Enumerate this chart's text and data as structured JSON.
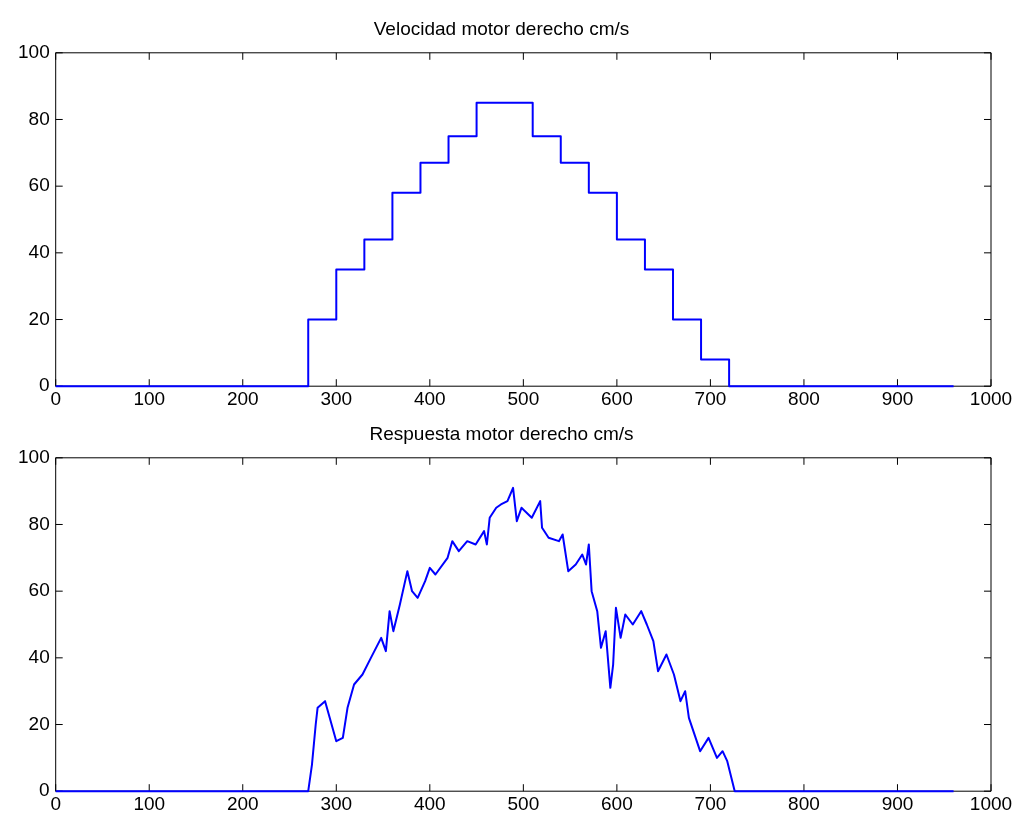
{
  "chart_data": [
    {
      "type": "step",
      "title": "Velocidad motor derecho cm/s",
      "xlim": [
        0,
        1000
      ],
      "xticks": [
        0,
        100,
        200,
        300,
        400,
        500,
        600,
        700,
        800,
        900,
        1000
      ],
      "ylim": [
        0,
        100
      ],
      "yticks": [
        0,
        20,
        40,
        60,
        80,
        100
      ],
      "grid": false,
      "legend": false,
      "line_style": "solid",
      "marker": "none",
      "series": [
        {
          "color": "#0000ff",
          "x": [
            0,
            270,
            300,
            330,
            360,
            390,
            420,
            450,
            510,
            540,
            570,
            600,
            630,
            660,
            690,
            720,
            960
          ],
          "values": [
            0,
            20,
            35,
            44,
            58,
            67,
            75,
            85,
            75,
            67,
            58,
            44,
            35,
            20,
            8,
            0,
            0
          ]
        }
      ]
    },
    {
      "type": "line",
      "title": "Respuesta motor derecho cm/s",
      "xlim": [
        0,
        1000
      ],
      "xticks": [
        0,
        100,
        200,
        300,
        400,
        500,
        600,
        700,
        800,
        900,
        1000
      ],
      "ylim": [
        0,
        100
      ],
      "yticks": [
        0,
        20,
        40,
        60,
        80,
        100
      ],
      "grid": false,
      "legend": false,
      "line_style": "solid",
      "marker": "none",
      "series": [
        {
          "color": "#0000ff",
          "x": [
            0,
            270,
            274,
            278,
            280,
            288,
            292,
            300,
            307,
            312,
            319,
            328,
            337,
            348,
            353,
            357,
            361,
            368,
            376,
            381,
            387,
            395,
            400,
            406,
            419,
            424,
            431,
            440,
            449,
            458,
            461,
            464,
            471,
            476,
            483,
            489,
            493,
            498,
            509,
            518,
            520,
            527,
            538,
            542,
            548,
            556,
            563,
            567,
            570,
            573,
            579,
            583,
            588,
            593,
            596,
            599,
            604,
            609,
            617,
            626,
            632,
            639,
            644,
            653,
            661,
            668,
            673,
            677,
            689,
            698,
            707,
            713,
            718,
            726,
            960
          ],
          "values": [
            0,
            0,
            8,
            20,
            25,
            27,
            23,
            15,
            16,
            25,
            32,
            35,
            40,
            46,
            42,
            54,
            48,
            56,
            66,
            60,
            58,
            63,
            67,
            65,
            70,
            75,
            72,
            75,
            74,
            78,
            74,
            82,
            85,
            86,
            87,
            91,
            81,
            85,
            82,
            87,
            79,
            76,
            75,
            77,
            66,
            68,
            71,
            68,
            74,
            60,
            54,
            43,
            48,
            31,
            38,
            55,
            46,
            53,
            50,
            54,
            50,
            45,
            36,
            41,
            35,
            27,
            30,
            22,
            12,
            16,
            10,
            12,
            9,
            0,
            0
          ]
        }
      ]
    }
  ]
}
